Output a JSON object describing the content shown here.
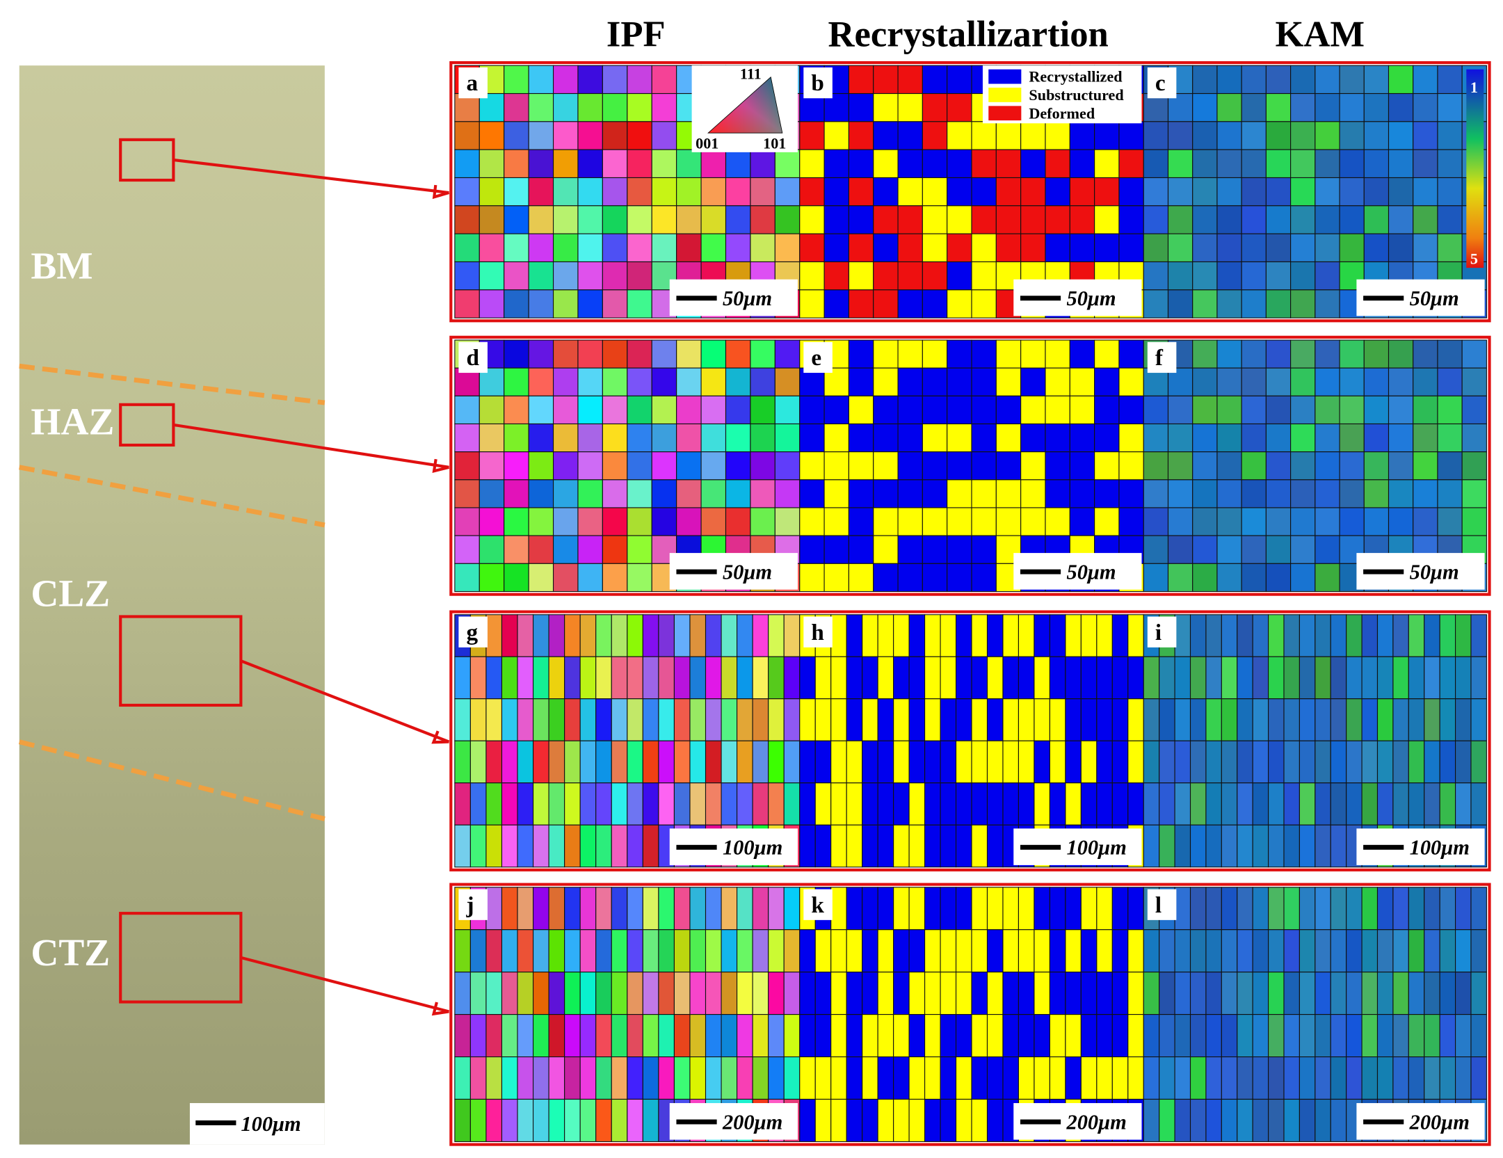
{
  "column_headers": [
    "IPF",
    "Recrystallizartion",
    "KAM"
  ],
  "micrograph": {
    "zones": [
      "BM",
      "HAZ",
      "CLZ",
      "CTZ"
    ],
    "scale_bar": "100μm"
  },
  "rows": [
    {
      "panels": [
        {
          "letter": "a",
          "scale_bar": "50μm"
        },
        {
          "letter": "b",
          "scale_bar": "50μm"
        },
        {
          "letter": "c",
          "scale_bar": "50μm"
        }
      ]
    },
    {
      "panels": [
        {
          "letter": "d",
          "scale_bar": "50μm"
        },
        {
          "letter": "e",
          "scale_bar": "50μm"
        },
        {
          "letter": "f",
          "scale_bar": "50μm"
        }
      ]
    },
    {
      "panels": [
        {
          "letter": "g",
          "scale_bar": "100μm"
        },
        {
          "letter": "h",
          "scale_bar": "100μm"
        },
        {
          "letter": "i",
          "scale_bar": "100μm"
        }
      ]
    },
    {
      "panels": [
        {
          "letter": "j",
          "scale_bar": "200μm"
        },
        {
          "letter": "k",
          "scale_bar": "200μm"
        },
        {
          "letter": "l",
          "scale_bar": "200μm"
        }
      ]
    }
  ],
  "recrystallization_legend": [
    "Recrystallized",
    "Substructured",
    "Deformed"
  ],
  "ipf_key": {
    "top": "111",
    "left": "001",
    "right": "101"
  },
  "kam_colorbar": {
    "min": "1",
    "max": "5"
  }
}
